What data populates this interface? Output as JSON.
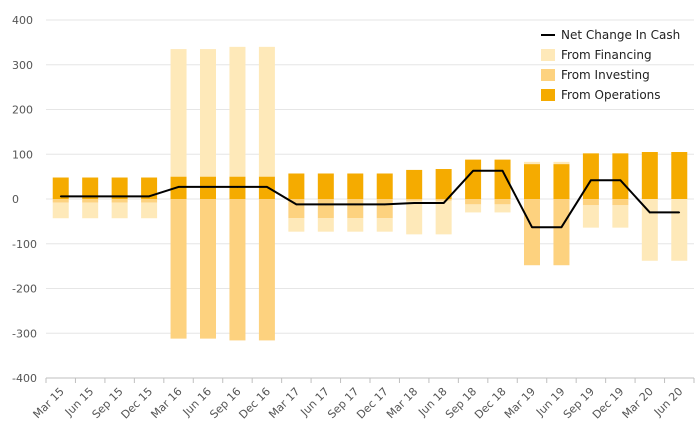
{
  "chart_data": {
    "type": "bar",
    "categories": [
      "Mar 15",
      "Jun 15",
      "Sep 15",
      "Dec 15",
      "Mar 16",
      "Jun 16",
      "Sep 16",
      "Dec 16",
      "Mar 17",
      "Jun 17",
      "Sep 17",
      "Dec 17",
      "Mar 18",
      "Jun 18",
      "Sep 18",
      "Dec 18",
      "Mar 19",
      "Jun 19",
      "Sep 19",
      "Dec 19",
      "Mar 20",
      "Jun 20"
    ],
    "ylim": [
      -400,
      400
    ],
    "yticks": [
      -400,
      -300,
      -200,
      -100,
      0,
      100,
      200,
      300,
      400
    ],
    "grid": true,
    "legend_position": "top-right",
    "stacked": true,
    "series": [
      {
        "name": "From Operations",
        "type": "bar",
        "color": "#f5ab00",
        "values": [
          48,
          48,
          48,
          48,
          50,
          50,
          50,
          50,
          57,
          57,
          57,
          57,
          65,
          67,
          88,
          88,
          78,
          78,
          102,
          102,
          105,
          105
        ]
      },
      {
        "name": "From Investing",
        "type": "bar",
        "color": "#fdd27f",
        "values": [
          -8,
          -8,
          -8,
          -8,
          -312,
          -312,
          -316,
          -316,
          -43,
          -43,
          -43,
          -43,
          -4,
          -4,
          -12,
          -12,
          -148,
          -148,
          -14,
          -14,
          0,
          0
        ]
      },
      {
        "name": "From Financing",
        "type": "bar",
        "color": "#fee9b9",
        "values": [
          -35,
          -35,
          -35,
          -35,
          285,
          285,
          290,
          290,
          -30,
          -30,
          -30,
          -30,
          -75,
          -75,
          -18,
          -18,
          5,
          5,
          -50,
          -50,
          -138,
          -138
        ]
      },
      {
        "name": "Net Change In Cash",
        "type": "line",
        "color": "#000000",
        "values": [
          6,
          6,
          6,
          6,
          27,
          27,
          27,
          27,
          -12,
          -12,
          -12,
          -12,
          -9,
          -9,
          63,
          63,
          -63,
          -63,
          42,
          42,
          -30,
          -30
        ]
      }
    ]
  }
}
